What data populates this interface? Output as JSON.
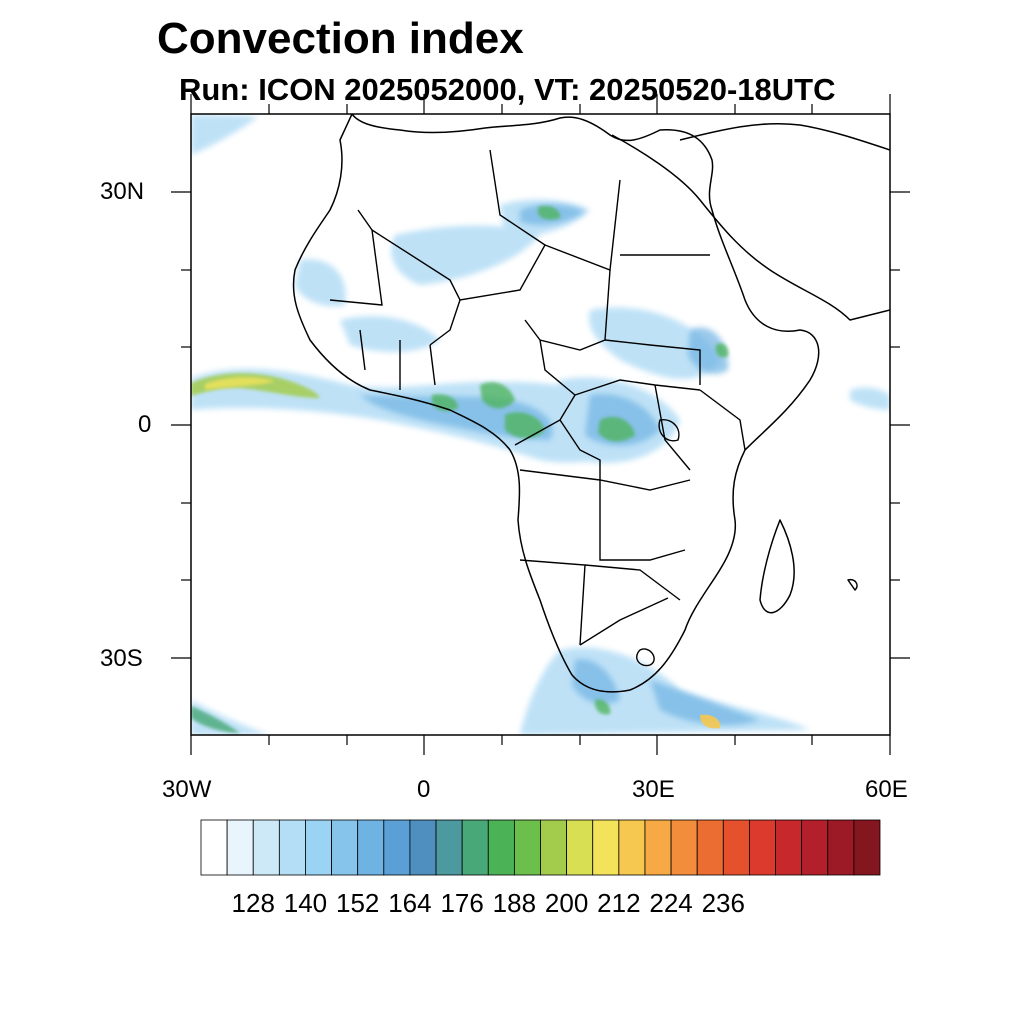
{
  "title": "Convection index",
  "subtitle": "Run: ICON 2025052000,  VT: 20250520-18UTC",
  "axes": {
    "lat_labels": [
      "30N",
      "0",
      "30S"
    ],
    "lon_labels": [
      "30W",
      "0",
      "30E",
      "60E"
    ]
  },
  "colorbar": {
    "labels": [
      "128",
      "140",
      "152",
      "164",
      "176",
      "188",
      "200",
      "212",
      "224",
      "236"
    ],
    "colors": [
      "#ffffff",
      "#e8f5fc",
      "#cde9f8",
      "#b3def6",
      "#9ad3f3",
      "#86c4ec",
      "#6fb3e3",
      "#5a9fd6",
      "#4f8fbf",
      "#4c9aa0",
      "#48a877",
      "#4bb356",
      "#6bbf4a",
      "#a3cc4d",
      "#d8df52",
      "#f2e35a",
      "#f6c84f",
      "#f6a944",
      "#f18d3b",
      "#ec6d31",
      "#e5512d",
      "#dc3a2d",
      "#c7282b",
      "#b31f2a",
      "#9c1a26",
      "#84161f"
    ]
  }
}
